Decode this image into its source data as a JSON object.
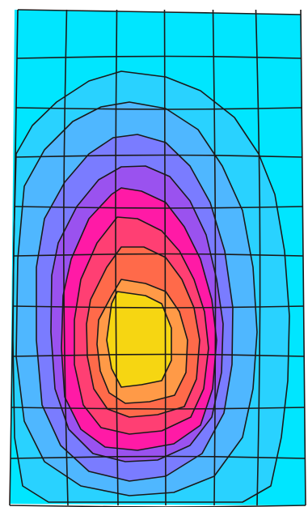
{
  "figure": {
    "kind": "fem-contour-plot",
    "background": "#ffffff",
    "mesh_line_color": "#1a1a1a",
    "contour_bands": [
      {
        "level": 0,
        "color": "#00e6ff"
      },
      {
        "level": 1,
        "color": "#29d2ff"
      },
      {
        "level": 2,
        "color": "#4fb7ff"
      },
      {
        "level": 3,
        "color": "#7a7cff"
      },
      {
        "level": 4,
        "color": "#9a52ef"
      },
      {
        "level": 5,
        "color": "#ff1aa6"
      },
      {
        "level": 6,
        "color": "#ff3f73"
      },
      {
        "level": 7,
        "color": "#ff6a4a"
      },
      {
        "level": 8,
        "color": "#ff9a47"
      },
      {
        "level": 9,
        "color": "#f6d612"
      }
    ]
  }
}
